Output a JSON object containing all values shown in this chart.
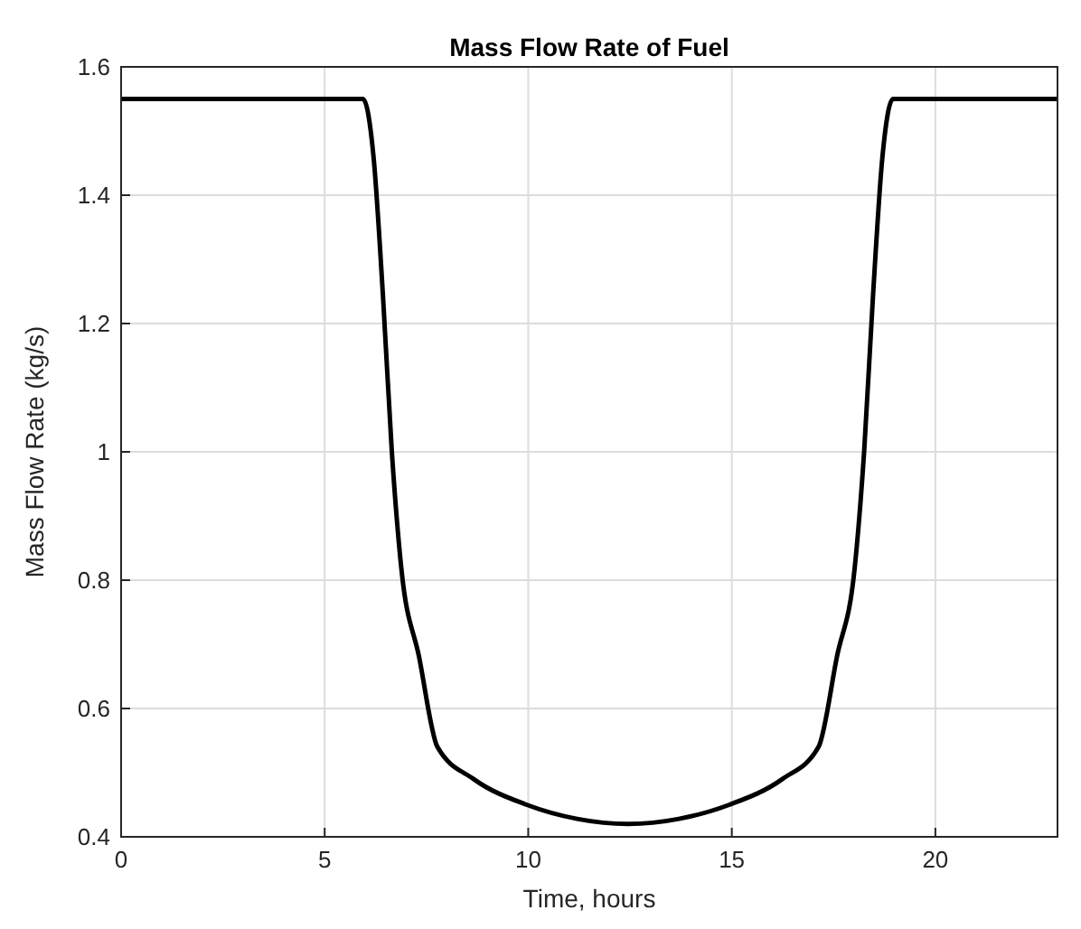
{
  "chart_data": {
    "type": "line",
    "title": "Mass Flow Rate of Fuel",
    "xlabel": "Time, hours",
    "ylabel": "Mass Flow Rate (kg/s)",
    "xlim": [
      0,
      23
    ],
    "ylim": [
      0.4,
      1.6
    ],
    "xticks": [
      0,
      5,
      10,
      15,
      20
    ],
    "yticks": [
      0.4,
      0.6,
      0.8,
      {
        "value": 1,
        "label": "1"
      },
      1.2,
      1.4,
      1.6
    ],
    "grid": true,
    "series": [
      {
        "color": "#000000",
        "x": [
          0,
          5.94,
          6.2,
          6.43,
          6.65,
          6.88,
          7.32,
          7.77,
          8.66,
          9.96,
          11.2,
          12.45,
          13.7,
          14.94,
          16.24,
          17.13,
          17.58,
          18.02,
          18.25,
          18.47,
          18.7,
          18.96,
          23
        ],
        "values": [
          1.55,
          1.55,
          1.46,
          1.245,
          1.0,
          0.82,
          0.68,
          0.54,
          0.49,
          0.45,
          0.428,
          0.42,
          0.428,
          0.45,
          0.49,
          0.54,
          0.68,
          0.82,
          1.0,
          1.245,
          1.46,
          1.55,
          1.55
        ]
      }
    ]
  }
}
